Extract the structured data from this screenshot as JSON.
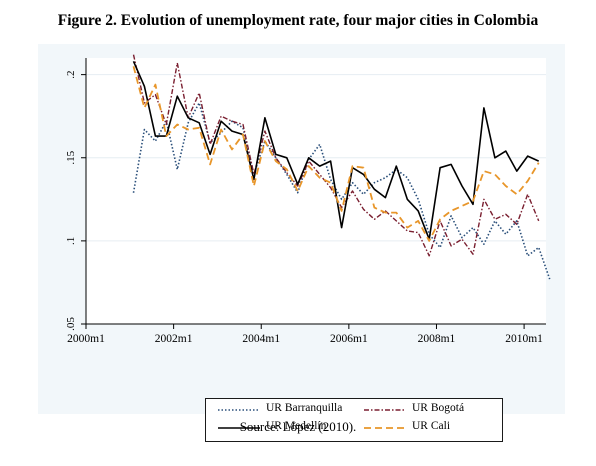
{
  "figure": {
    "title": "Figure 2. Evolution of unemployment rate, four major cities in Colombia",
    "source": "Source: López (2010)."
  },
  "chart_data": {
    "type": "line",
    "title": "Figure 2. Evolution of unemployment rate, four major cities in Colombia",
    "xlabel": "",
    "ylabel": "",
    "x_ticks": [
      "2000m1",
      "2002m1",
      "2004m1",
      "2006m1",
      "2008m1",
      "2010m1"
    ],
    "y_ticks": [
      ".05",
      ".1",
      ".15",
      ".2"
    ],
    "xlim": [
      "2000m1",
      "2010m7"
    ],
    "ylim": [
      0.05,
      0.21
    ],
    "grid": "horizontal",
    "legend_position": "bottom",
    "series": [
      {
        "name": "UR Barranquilla",
        "color": "#2a4f7a",
        "style": "dotted",
        "points": [
          [
            "2001m2",
            0.129
          ],
          [
            "2001m5",
            0.167
          ],
          [
            "2001m8",
            0.16
          ],
          [
            "2001m11",
            0.172
          ],
          [
            "2002m2",
            0.143
          ],
          [
            "2002m5",
            0.171
          ],
          [
            "2002m8",
            0.183
          ],
          [
            "2002m11",
            0.159
          ],
          [
            "2003m2",
            0.165
          ],
          [
            "2003m5",
            0.172
          ],
          [
            "2003m8",
            0.168
          ],
          [
            "2003m11",
            0.14
          ],
          [
            "2004m2",
            0.16
          ],
          [
            "2004m5",
            0.15
          ],
          [
            "2004m8",
            0.14
          ],
          [
            "2004m11",
            0.129
          ],
          [
            "2005m2",
            0.149
          ],
          [
            "2005m5",
            0.158
          ],
          [
            "2005m8",
            0.137
          ],
          [
            "2005m11",
            0.125
          ],
          [
            "2006m2",
            0.135
          ],
          [
            "2006m5",
            0.128
          ],
          [
            "2006m8",
            0.135
          ],
          [
            "2006m11",
            0.138
          ],
          [
            "2007m2",
            0.143
          ],
          [
            "2007m5",
            0.138
          ],
          [
            "2007m8",
            0.125
          ],
          [
            "2007m11",
            0.104
          ],
          [
            "2008m2",
            0.096
          ],
          [
            "2008m5",
            0.115
          ],
          [
            "2008m8",
            0.102
          ],
          [
            "2008m11",
            0.108
          ],
          [
            "2009m2",
            0.098
          ],
          [
            "2009m5",
            0.112
          ],
          [
            "2009m8",
            0.104
          ],
          [
            "2009m11",
            0.112
          ],
          [
            "2010m2",
            0.091
          ],
          [
            "2010m5",
            0.096
          ],
          [
            "2010m8",
            0.077
          ]
        ]
      },
      {
        "name": "UR Bogotá",
        "color": "#7a1f30",
        "style": "dash-dot",
        "points": [
          [
            "2001m2",
            0.212
          ],
          [
            "2001m5",
            0.183
          ],
          [
            "2001m8",
            0.188
          ],
          [
            "2001m11",
            0.17
          ],
          [
            "2002m2",
            0.207
          ],
          [
            "2002m5",
            0.174
          ],
          [
            "2002m8",
            0.189
          ],
          [
            "2002m11",
            0.158
          ],
          [
            "2003m2",
            0.175
          ],
          [
            "2003m5",
            0.172
          ],
          [
            "2003m8",
            0.17
          ],
          [
            "2003m11",
            0.14
          ],
          [
            "2004m2",
            0.166
          ],
          [
            "2004m5",
            0.15
          ],
          [
            "2004m8",
            0.141
          ],
          [
            "2004m11",
            0.133
          ],
          [
            "2005m2",
            0.148
          ],
          [
            "2005m5",
            0.14
          ],
          [
            "2005m8",
            0.132
          ],
          [
            "2005m11",
            0.12
          ],
          [
            "2006m2",
            0.13
          ],
          [
            "2006m5",
            0.119
          ],
          [
            "2006m8",
            0.113
          ],
          [
            "2006m11",
            0.118
          ],
          [
            "2007m2",
            0.112
          ],
          [
            "2007m5",
            0.106
          ],
          [
            "2007m8",
            0.105
          ],
          [
            "2007m11",
            0.091
          ],
          [
            "2008m2",
            0.112
          ],
          [
            "2008m5",
            0.097
          ],
          [
            "2008m8",
            0.101
          ],
          [
            "2008m11",
            0.092
          ],
          [
            "2009m2",
            0.125
          ],
          [
            "2009m5",
            0.113
          ],
          [
            "2009m8",
            0.116
          ],
          [
            "2009m11",
            0.11
          ],
          [
            "2010m2",
            0.128
          ],
          [
            "2010m5",
            0.112
          ]
        ]
      },
      {
        "name": "UR Medellín",
        "color": "#000000",
        "style": "solid",
        "points": [
          [
            "2001m2",
            0.208
          ],
          [
            "2001m5",
            0.193
          ],
          [
            "2001m8",
            0.163
          ],
          [
            "2001m11",
            0.163
          ],
          [
            "2002m2",
            0.187
          ],
          [
            "2002m5",
            0.174
          ],
          [
            "2002m8",
            0.171
          ],
          [
            "2002m11",
            0.152
          ],
          [
            "2003m2",
            0.172
          ],
          [
            "2003m5",
            0.166
          ],
          [
            "2003m8",
            0.164
          ],
          [
            "2003m11",
            0.137
          ],
          [
            "2004m2",
            0.174
          ],
          [
            "2004m5",
            0.152
          ],
          [
            "2004m8",
            0.15
          ],
          [
            "2004m11",
            0.134
          ],
          [
            "2005m2",
            0.15
          ],
          [
            "2005m5",
            0.145
          ],
          [
            "2005m8",
            0.148
          ],
          [
            "2005m11",
            0.108
          ],
          [
            "2006m2",
            0.144
          ],
          [
            "2006m5",
            0.14
          ],
          [
            "2006m8",
            0.131
          ],
          [
            "2006m11",
            0.126
          ],
          [
            "2007m2",
            0.145
          ],
          [
            "2007m5",
            0.125
          ],
          [
            "2007m8",
            0.118
          ],
          [
            "2007m11",
            0.101
          ],
          [
            "2008m2",
            0.144
          ],
          [
            "2008m5",
            0.146
          ],
          [
            "2008m8",
            0.133
          ],
          [
            "2008m11",
            0.122
          ],
          [
            "2009m2",
            0.18
          ],
          [
            "2009m5",
            0.15
          ],
          [
            "2009m8",
            0.154
          ],
          [
            "2009m11",
            0.142
          ],
          [
            "2010m2",
            0.151
          ],
          [
            "2010m5",
            0.148
          ]
        ]
      },
      {
        "name": "UR Cali",
        "color": "#e8962a",
        "style": "dashed",
        "points": [
          [
            "2001m2",
            0.205
          ],
          [
            "2001m5",
            0.18
          ],
          [
            "2001m8",
            0.194
          ],
          [
            "2001m11",
            0.163
          ],
          [
            "2002m2",
            0.17
          ],
          [
            "2002m5",
            0.167
          ],
          [
            "2002m8",
            0.168
          ],
          [
            "2002m11",
            0.146
          ],
          [
            "2003m2",
            0.167
          ],
          [
            "2003m5",
            0.155
          ],
          [
            "2003m8",
            0.164
          ],
          [
            "2003m11",
            0.133
          ],
          [
            "2004m2",
            0.16
          ],
          [
            "2004m5",
            0.148
          ],
          [
            "2004m8",
            0.143
          ],
          [
            "2004m11",
            0.13
          ],
          [
            "2005m2",
            0.145
          ],
          [
            "2005m5",
            0.138
          ],
          [
            "2005m8",
            0.135
          ],
          [
            "2005m11",
            0.118
          ],
          [
            "2006m2",
            0.145
          ],
          [
            "2006m5",
            0.144
          ],
          [
            "2006m8",
            0.12
          ],
          [
            "2006m11",
            0.117
          ],
          [
            "2007m2",
            0.117
          ],
          [
            "2007m5",
            0.108
          ],
          [
            "2007m8",
            0.112
          ],
          [
            "2007m11",
            0.1
          ],
          [
            "2008m2",
            0.113
          ],
          [
            "2008m5",
            0.118
          ],
          [
            "2008m8",
            0.121
          ],
          [
            "2008m11",
            0.124
          ],
          [
            "2009m2",
            0.142
          ],
          [
            "2009m5",
            0.14
          ],
          [
            "2009m8",
            0.133
          ],
          [
            "2009m11",
            0.128
          ],
          [
            "2010m2",
            0.136
          ],
          [
            "2010m5",
            0.147
          ]
        ]
      }
    ]
  }
}
